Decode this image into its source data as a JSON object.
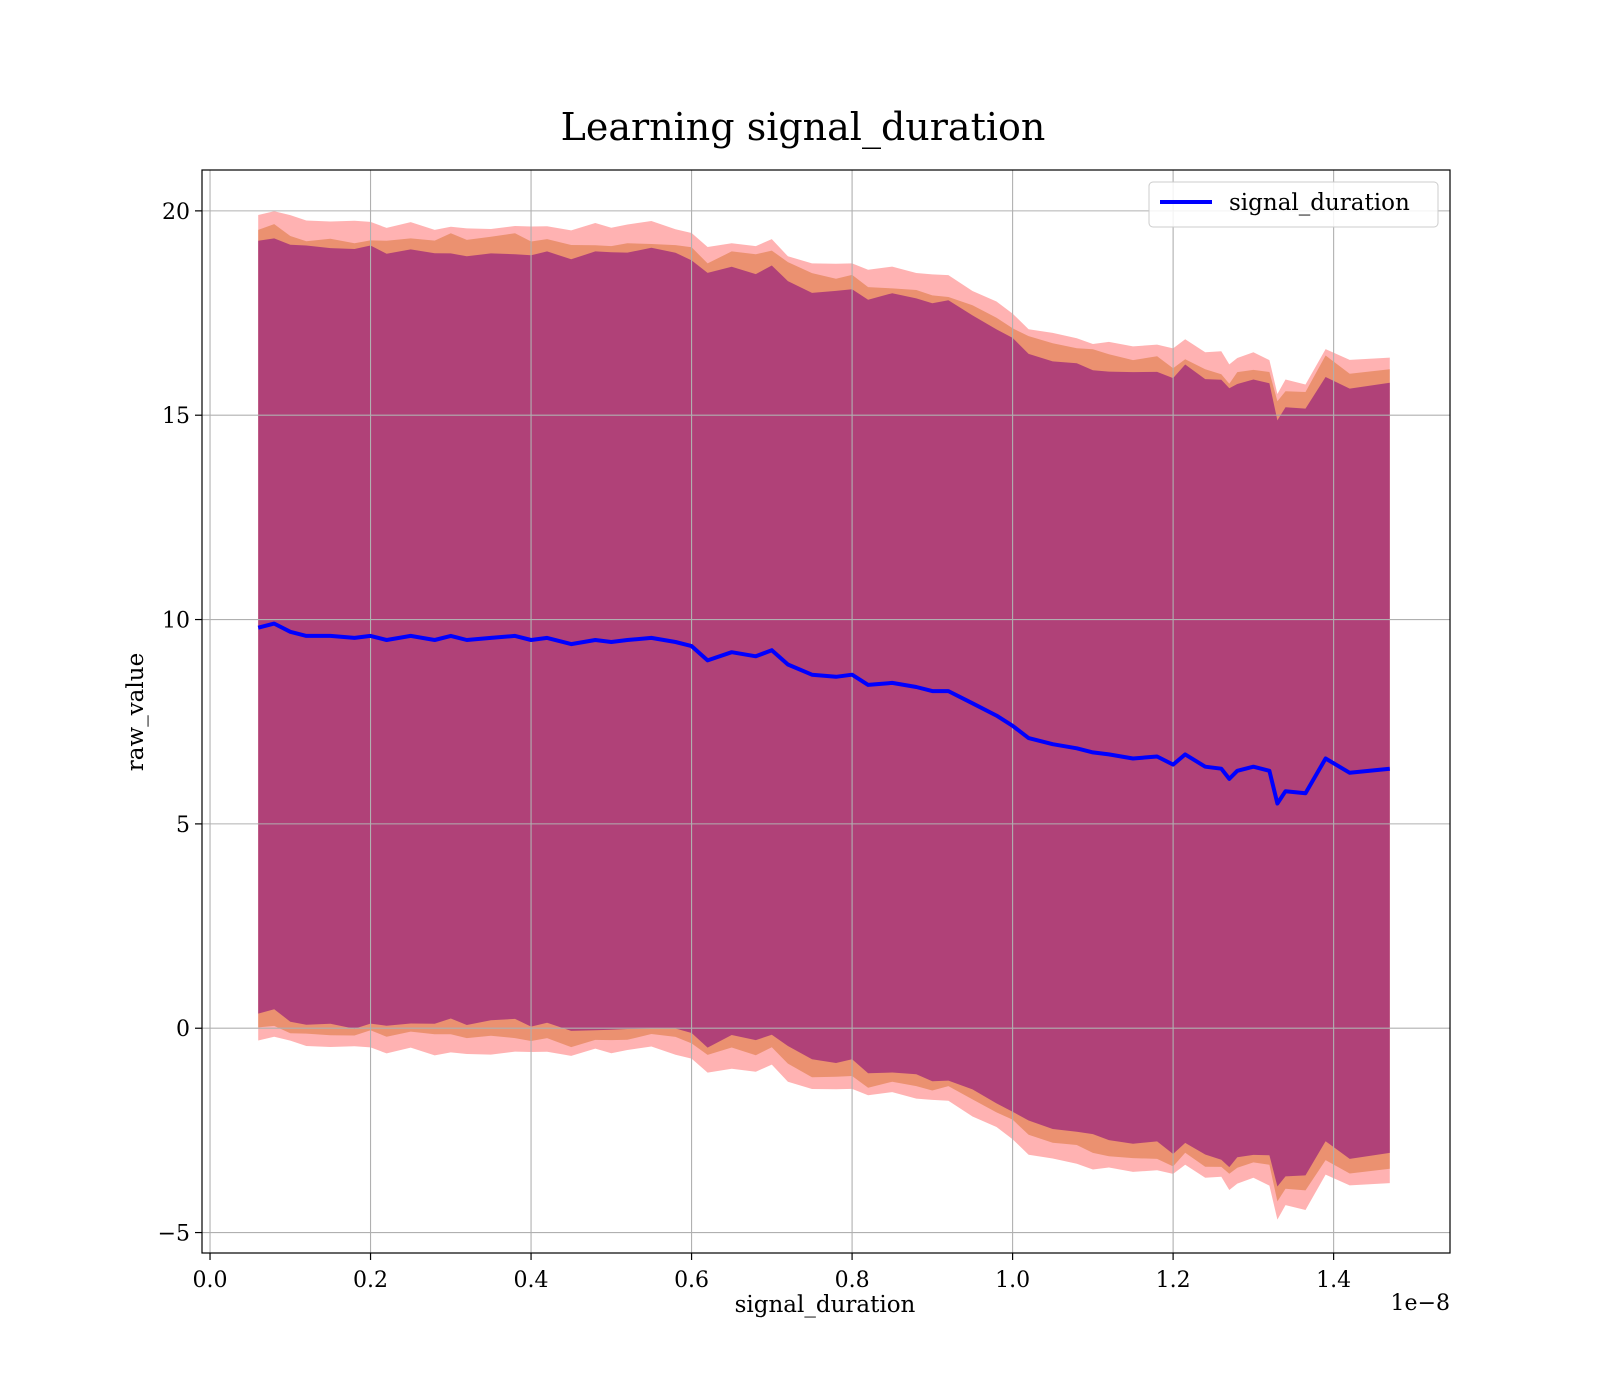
{
  "chart_data": {
    "type": "line",
    "title": "Learning signal_duration",
    "xlabel": "signal_duration",
    "ylabel": "raw_value",
    "x_offset_label": "1e−8",
    "xlim": [
      -0.01,
      1.545
    ],
    "ylim": [
      -5.5,
      21.0
    ],
    "xticks": [
      0.0,
      0.2,
      0.4,
      0.6,
      0.8,
      1.0,
      1.2,
      1.4
    ],
    "xtick_labels": [
      "0.0",
      "0.2",
      "0.4",
      "0.6",
      "0.8",
      "1.0",
      "1.2",
      "1.4"
    ],
    "yticks": [
      -5,
      0,
      5,
      10,
      15,
      20
    ],
    "ytick_labels": [
      "−5",
      "0",
      "5",
      "10",
      "15",
      "20"
    ],
    "grid": true,
    "legend": {
      "position": "upper-right",
      "entries": [
        "signal_duration"
      ]
    },
    "colors": {
      "line": "#0000ff",
      "band_outer": "#ff0000",
      "band_middle": "#d2691e",
      "band_inner": "#800080",
      "grid": "#b0b0b0"
    },
    "series": [
      {
        "name": "signal_duration",
        "x": [
          0.06,
          0.08,
          0.1,
          0.12,
          0.15,
          0.18,
          0.2,
          0.22,
          0.25,
          0.28,
          0.3,
          0.32,
          0.35,
          0.38,
          0.4,
          0.42,
          0.45,
          0.48,
          0.5,
          0.52,
          0.55,
          0.58,
          0.6,
          0.62,
          0.65,
          0.68,
          0.7,
          0.72,
          0.75,
          0.78,
          0.8,
          0.82,
          0.85,
          0.88,
          0.9,
          0.92,
          0.95,
          0.98,
          1.0,
          1.02,
          1.05,
          1.08,
          1.1,
          1.12,
          1.15,
          1.18,
          1.2,
          1.215,
          1.24,
          1.26,
          1.27,
          1.28,
          1.3,
          1.32,
          1.33,
          1.34,
          1.365,
          1.39,
          1.42,
          1.47
        ],
        "y": [
          9.8,
          9.9,
          9.7,
          9.6,
          9.6,
          9.55,
          9.6,
          9.5,
          9.6,
          9.5,
          9.6,
          9.5,
          9.55,
          9.6,
          9.5,
          9.55,
          9.4,
          9.5,
          9.45,
          9.5,
          9.55,
          9.45,
          9.35,
          9.0,
          9.2,
          9.1,
          9.25,
          8.9,
          8.65,
          8.6,
          8.65,
          8.4,
          8.45,
          8.35,
          8.25,
          8.25,
          7.95,
          7.65,
          7.4,
          7.1,
          6.95,
          6.85,
          6.75,
          6.7,
          6.6,
          6.65,
          6.45,
          6.7,
          6.4,
          6.35,
          6.1,
          6.3,
          6.4,
          6.3,
          5.5,
          5.8,
          5.75,
          6.6,
          6.25,
          6.35
        ]
      }
    ],
    "bands": {
      "offset_inner": 9.45,
      "offset_middle": 9.75,
      "offset_outer": 10.1
    }
  }
}
